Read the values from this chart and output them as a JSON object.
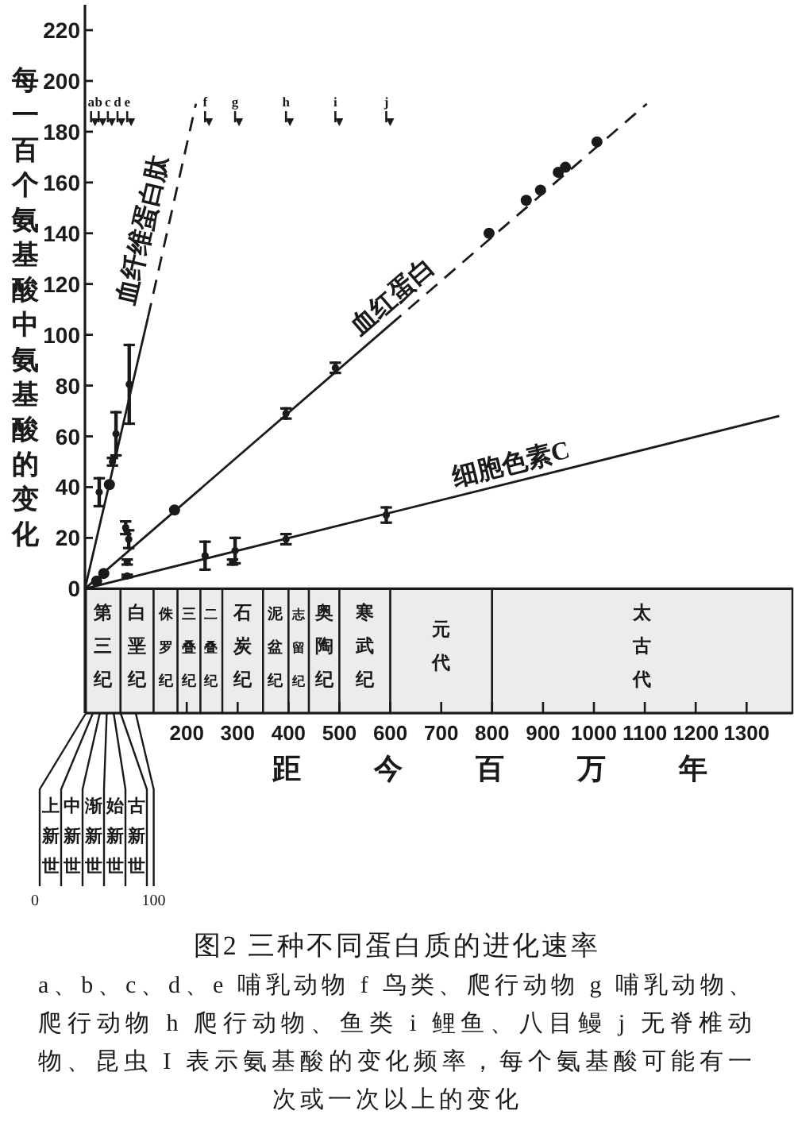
{
  "chart_data": [
    {
      "type": "scatter",
      "title": "图2 三种不同蛋白质的进化速率",
      "xlabel": "距今百万年",
      "ylabel": "每一百个氨基酸中氨基酸的变化",
      "xlim": [
        0,
        1390
      ],
      "ylim": [
        -49,
        230
      ],
      "xticks": [
        200,
        300,
        400,
        500,
        600,
        700,
        800,
        900,
        1000,
        1100,
        1200,
        1300
      ],
      "yticks": [
        0,
        20,
        40,
        60,
        80,
        100,
        120,
        140,
        160,
        180,
        200,
        220
      ],
      "series": [
        {
          "name": "血纤维蛋白肽",
          "type": "line",
          "color": "#1a1a1a",
          "line_style": "solid",
          "x": [
            0,
            124
          ],
          "values": [
            0,
            107
          ]
        },
        {
          "type": "line",
          "color": "#1a1a1a",
          "line_style": "dashed",
          "x": [
            124,
            218
          ],
          "values": [
            107,
            191
          ]
        },
        {
          "name": "血红蛋白",
          "type": "line",
          "color": "#1a1a1a",
          "line_style": "solid",
          "x": [
            0,
            600
          ],
          "values": [
            0,
            104
          ]
        },
        {
          "type": "line",
          "color": "#1a1a1a",
          "line_style": "dashed",
          "x": [
            600,
            1104
          ],
          "values": [
            104,
            191
          ]
        },
        {
          "name": "细胞色素C",
          "type": "line",
          "color": "#1a1a1a",
          "line_style": "solid",
          "x": [
            0,
            1364
          ],
          "values": [
            0,
            68
          ]
        },
        {
          "type": "scatter",
          "color": "#1a1a1a",
          "marker": "circle",
          "x": [
            28,
            54,
            61,
            87
          ],
          "values": [
            38,
            50,
            61,
            80.5
          ],
          "errors": [
            6,
            2,
            9,
            16
          ]
        },
        {
          "type": "scatter",
          "color": "#1a1a1a",
          "marker": "circle",
          "x": [
            48
          ],
          "values": [
            41
          ]
        },
        {
          "type": "scatter",
          "color": "#1a1a1a",
          "marker": "circle",
          "x": [
            80,
            83,
            86,
            395,
            492
          ],
          "values": [
            24,
            10.5,
            19.5,
            69,
            87
          ],
          "errors": [
            3,
            1.5,
            4,
            2.5,
            2.5
          ]
        },
        {
          "type": "scatter",
          "color": "#1a1a1a",
          "marker": "circle",
          "x": [
            23,
            37,
            176,
            794,
            867,
            895,
            930,
            944,
            1006
          ],
          "values": [
            3,
            6,
            31,
            140,
            153,
            157,
            164,
            166,
            176
          ]
        },
        {
          "type": "scatter",
          "color": "#1a1a1a",
          "marker": "circle",
          "x": [
            83,
            236,
            290,
            295,
            395,
            592
          ],
          "values": [
            5,
            13,
            10.5,
            15,
            19.5,
            29
          ],
          "errors": [
            1,
            6,
            1.5,
            5.5,
            2.5,
            3.5
          ]
        }
      ],
      "bands": [
        {
          "axis": "x",
          "from": 2,
          "to": 70,
          "label": "第三纪",
          "color": "#ececec"
        },
        {
          "axis": "x",
          "from": 70,
          "to": 135,
          "label": "白垩纪",
          "color": "#ececec"
        },
        {
          "axis": "x",
          "from": 135,
          "to": 182,
          "label": "侏罗纪",
          "color": "#ececec"
        },
        {
          "axis": "x",
          "from": 182,
          "to": 227,
          "label": "三叠纪",
          "color": "#ececec"
        },
        {
          "axis": "x",
          "from": 227,
          "to": 270,
          "label": "二叠纪",
          "color": "#ececec"
        },
        {
          "axis": "x",
          "from": 270,
          "to": 350,
          "label": "石炭纪",
          "color": "#ececec"
        },
        {
          "axis": "x",
          "from": 350,
          "to": 400,
          "label": "泥盆纪",
          "color": "#ececec"
        },
        {
          "axis": "x",
          "from": 400,
          "to": 440,
          "label": "志留纪",
          "color": "#ececec"
        },
        {
          "axis": "x",
          "from": 440,
          "to": 500,
          "label": "奥陶纪",
          "color": "#ececec"
        },
        {
          "axis": "x",
          "from": 500,
          "to": 600,
          "label": "寒武纪",
          "color": "#ececec"
        },
        {
          "axis": "x",
          "from": 600,
          "to": 800,
          "label": "元代",
          "color": "#ececec"
        },
        {
          "axis": "x",
          "from": 800,
          "to": 1390,
          "label": "太古代",
          "color": "#ececec"
        }
      ],
      "ref_lines": [
        {
          "axis": "y",
          "value": 0
        },
        {
          "axis": "x",
          "value": 12,
          "label": "a"
        },
        {
          "axis": "x",
          "value": 27,
          "label": "b"
        },
        {
          "axis": "x",
          "value": 45,
          "label": "c"
        },
        {
          "axis": "x",
          "value": 64,
          "label": "d"
        },
        {
          "axis": "x",
          "value": 83,
          "label": "e"
        },
        {
          "axis": "x",
          "value": 236,
          "label": "f"
        },
        {
          "axis": "x",
          "value": 295,
          "label": "g"
        },
        {
          "axis": "x",
          "value": 395,
          "label": "h"
        },
        {
          "axis": "x",
          "value": 492,
          "label": "i"
        },
        {
          "axis": "x",
          "value": 592,
          "label": "j"
        }
      ],
      "annotations": [
        "a、b、c、d、e 哺乳动物 f 鸟类、爬行动物 g 哺乳动物、爬行动物 h 爬行动物、鱼类 i 鲤鱼、八目鳗 j 无脊椎动物、昆虫 I 表示氨基酸的变化频率，每个氨基酸可能有一次或一次以上的变化"
      ]
    },
    {
      "type": "other",
      "categories": [
        "上新世",
        "中新世",
        "渐新世",
        "始新世",
        "古新世"
      ],
      "annotations": [
        "0",
        "100"
      ]
    }
  ]
}
